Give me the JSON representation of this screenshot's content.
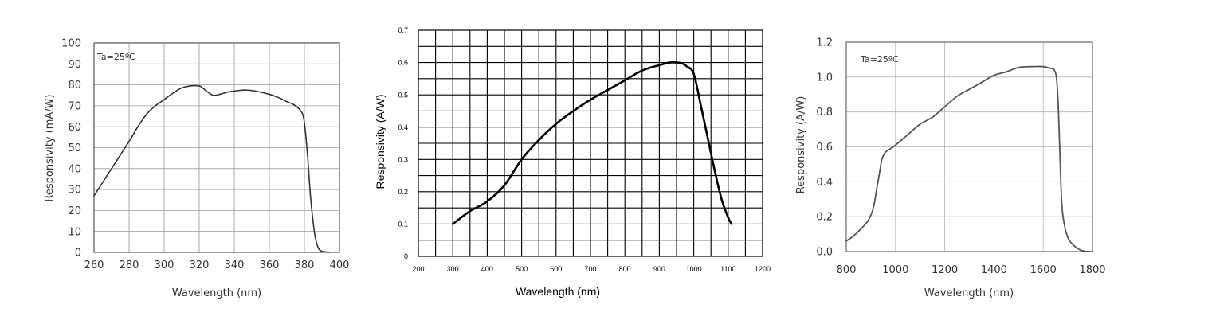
{
  "chart_data": [
    {
      "type": "line",
      "title": "",
      "annotation": "Ta=25ºC",
      "xlabel": "Wavelength  (nm)",
      "ylabel": "Responsivity  (mA/W)",
      "xlim": [
        260,
        400
      ],
      "ylim": [
        0,
        100
      ],
      "xticks": [
        "260",
        "280",
        "300",
        "320",
        "340",
        "360",
        "380",
        "400"
      ],
      "yticks": [
        "0",
        "10",
        "20",
        "30",
        "40",
        "50",
        "60",
        "70",
        "80",
        "90",
        "100"
      ],
      "grid": true,
      "series": [
        {
          "x": [
            260,
            270,
            280,
            285,
            290,
            295,
            300,
            305,
            310,
            315,
            320,
            322,
            325,
            328,
            332,
            336,
            340,
            345,
            350,
            355,
            360,
            365,
            370,
            374,
            377,
            379,
            380,
            381,
            382,
            383,
            384,
            386,
            388,
            390,
            392,
            394
          ],
          "y": [
            27,
            40,
            53,
            60,
            66,
            70,
            73,
            76,
            78.5,
            79.5,
            79.5,
            78.5,
            76.5,
            75,
            75.5,
            76.5,
            77,
            77.5,
            77.3,
            76.5,
            75.5,
            74,
            72,
            70.5,
            68.5,
            66,
            62,
            54,
            44,
            32,
            22,
            8,
            2,
            0.5,
            0.2,
            0
          ]
        }
      ]
    },
    {
      "type": "line",
      "title": "",
      "xlabel": "Wavelength (nm)",
      "ylabel": "Responsivity (A/W)",
      "xlim": [
        200,
        1200
      ],
      "ylim": [
        0,
        0.7
      ],
      "xticks": [
        "200",
        "300",
        "400",
        "500",
        "600",
        "700",
        "800",
        "900",
        "1000",
        "1100",
        "1200"
      ],
      "yticks": [
        "0",
        "0.1",
        "0.2",
        "0.3",
        "0.4",
        "0.5",
        "0.6",
        "0.7"
      ],
      "grid": true,
      "series": [
        {
          "x": [
            300,
            350,
            400,
            450,
            500,
            550,
            600,
            650,
            700,
            750,
            800,
            850,
            900,
            930,
            950,
            965,
            980,
            1000,
            1020,
            1040,
            1060,
            1080,
            1100,
            1110
          ],
          "y": [
            0.1,
            0.14,
            0.17,
            0.22,
            0.3,
            0.36,
            0.41,
            0.45,
            0.485,
            0.515,
            0.545,
            0.575,
            0.592,
            0.6,
            0.6,
            0.598,
            0.588,
            0.565,
            0.47,
            0.37,
            0.27,
            0.18,
            0.12,
            0.1
          ]
        }
      ]
    },
    {
      "type": "line",
      "title": "",
      "annotation": "Ta=25ºC",
      "xlabel": "Wavelength  (nm)",
      "ylabel": "Responsivity  (A/W)",
      "xlim": [
        800,
        1800
      ],
      "ylim": [
        0,
        1.2
      ],
      "xticks": [
        "800",
        "1000",
        "1200",
        "1400",
        "1600",
        "1800"
      ],
      "yticks": [
        "0.0",
        "0.2",
        "0.4",
        "0.6",
        "0.8",
        "1.0",
        "1.2"
      ],
      "grid": true,
      "series": [
        {
          "x": [
            800,
            830,
            860,
            890,
            910,
            925,
            935,
            945,
            960,
            980,
            1000,
            1050,
            1100,
            1150,
            1200,
            1250,
            1300,
            1350,
            1400,
            1450,
            1500,
            1550,
            1600,
            1630,
            1645,
            1655,
            1662,
            1668,
            1675,
            1685,
            1700,
            1720,
            1750,
            1780,
            1800
          ],
          "y": [
            0.06,
            0.09,
            0.13,
            0.18,
            0.25,
            0.37,
            0.45,
            0.53,
            0.57,
            0.59,
            0.61,
            0.67,
            0.73,
            0.77,
            0.83,
            0.89,
            0.93,
            0.97,
            1.01,
            1.03,
            1.055,
            1.06,
            1.06,
            1.05,
            1.04,
            0.98,
            0.8,
            0.55,
            0.28,
            0.16,
            0.08,
            0.04,
            0.01,
            0.0,
            0.0
          ]
        }
      ]
    }
  ]
}
